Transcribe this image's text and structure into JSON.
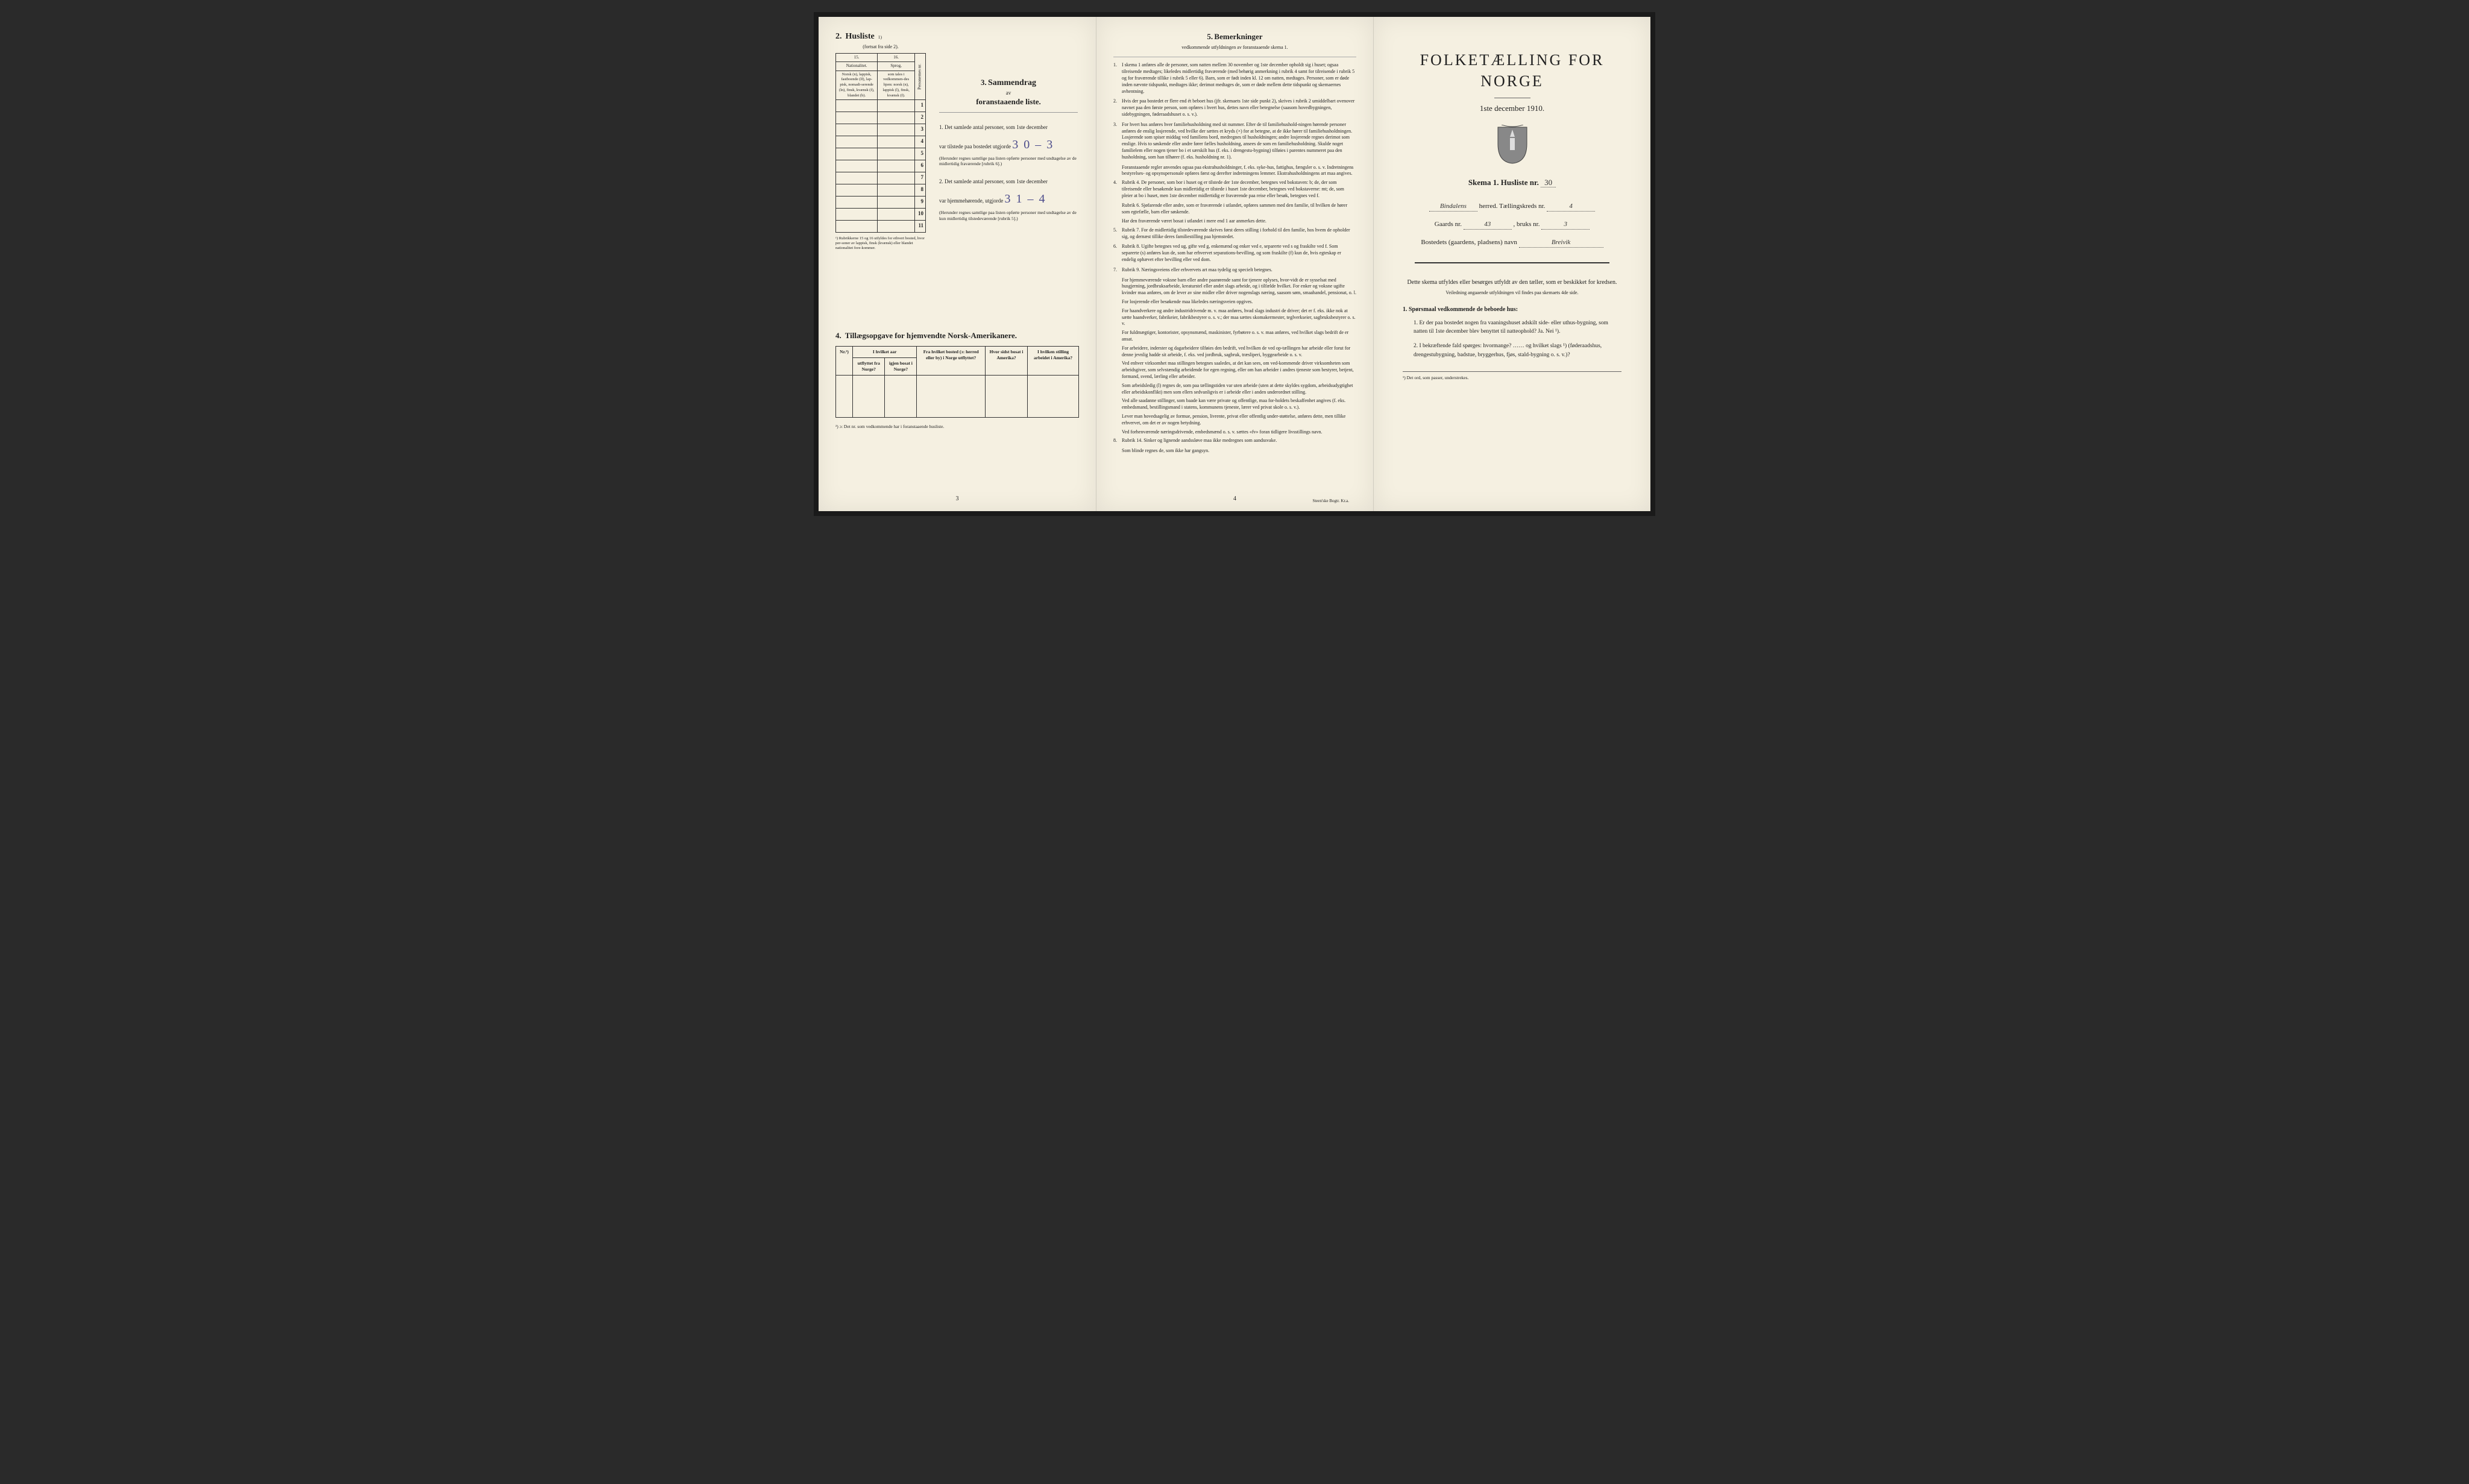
{
  "page1": {
    "section2": {
      "num": "2.",
      "title": "Husliste",
      "sup": "1)",
      "sub": "(fortsat fra side 2).",
      "col15": "15.",
      "col16": "16.",
      "h15a": "Nationalitet.",
      "h15b": "Norsk (n), lappisk, fastboende (lf), lap-pisk, nomadi-serende (ln), finsk, kvænsk (f), blandet (b).",
      "h16a": "Sprog,",
      "h16b": "som tales i vedkommen-des hjem: norsk (n), lappisk (l), finsk, kvænsk (f).",
      "h_pers": "Personernes nr.",
      "rows": [
        "1",
        "2",
        "3",
        "4",
        "5",
        "6",
        "7",
        "8",
        "9",
        "10",
        "11"
      ],
      "note": "¹) Rubrikkerne 15 og 16 utfyldes for ethvert bosted, hvor per-soner av lappisk, finsk (kvænsk) eller blandet nationalitet fore-kommer."
    },
    "section3": {
      "num": "3.",
      "word": "Sammendrag",
      "sub": "av",
      "main": "foranstaaende liste.",
      "item1_pre": "1. Det samlede antal personer, som 1ste december",
      "item1_mid": "var tilstede paa bostedet utgjorde",
      "item1_val": "3 0 – 3",
      "item1_paren": "(Herunder regnes samtlige paa listen opførte personer med undtagelse av de midlertidig fraværende [rubrik 6].)",
      "item2_pre": "2. Det samlede antal personer, som 1ste december",
      "item2_mid": "var hjemmehørende, utgjorde",
      "item2_val": "3 1 – 4",
      "item2_paren": "(Herunder regnes samtlige paa listen opførte personer med undtagelse av de kun midlertidig tilstedeværende [rubrik 5].)"
    },
    "section4": {
      "num": "4.",
      "title": "Tillægsopgave for hjemvendte Norsk-Amerikanere.",
      "h_nr": "Nr.²)",
      "h_aar": "I hvilket aar",
      "h_aar1": "utflyttet fra Norge?",
      "h_aar2": "igjen bosat i Norge?",
      "h_bosted": "Fra hvilket bosted (ɔ: herred eller by) i Norge utflyttet?",
      "h_sidst": "Hvor sidst bosat i Amerika?",
      "h_stilling": "I hvilken stilling arbeidet i Amerika?",
      "note": "²) ɔ: Det nr. som vedkommende har i foranstaaende husliste."
    },
    "pagenum": "3"
  },
  "page2": {
    "num": "5.",
    "title": "Bemerkninger",
    "sub": "vedkommende utfyldningen av foranstaaende skema 1.",
    "items": [
      {
        "n": "1.",
        "t": "I skema 1 anføres alle de personer, som natten mellem 30 november og 1ste december opholdt sig i huset; ogsaa tilreisende medtages; likeledes midlertidig fraværende (med behørig anmerkning i rubrik 4 samt for tilreisende i rubrik 5 og for fraværende tillike i rubrik 5 eller 6). Barn, som er født inden kl. 12 om natten, medtages. Personer, som er døde inden nævnte tidspunkt, medtages ikke; derimot medtages de, som er døde mellem dette tidspunkt og skemaernes avhentning."
      },
      {
        "n": "2.",
        "t": "Hvis der paa bostedet er flere end ét beboet hus (jfr. skemaets 1ste side punkt 2), skrives i rubrik 2 umiddelbart ovenover navnet paa den første person, som opføres i hvert hus, dettes navn eller betegnelse (saasom hovedbygningen, sidebygningen, føderaadshuset o. s. v.)."
      },
      {
        "n": "3.",
        "t": "For hvert hus anføres hver familiehusholdning med sit nummer. Efter de til familiehushold-ningen hørende personer anføres de enslig losjerende, ved hvilke der sættes et kryds (×) for at betegne, at de ikke hører til familiehusholdningen. Losjerende som spiser middag ved familiens bord, medregnes til husholdningen; andre losjerende regnes derimot som enslige. Hvis to søskende eller andre fører fælles husholdning, ansees de som en familiehusholdning. Skulde noget familielem eller nogen tjener bo i et særskilt hus (f. eks. i drengestu-bygning) tilføies i parentes nummeret paa den husholdning, som han tilhører (f. eks. husholdning nr. 1)."
      },
      {
        "n": "",
        "t": "Foranstaaende regler anvendes ogsaa paa ekstrahusholdninger, f. eks. syke-hus, fattighus, fængsler o. s. v. Indretningens bestyrelses- og opsynspersonale opføres først og derefter indretningens lemmer. Ekstrahusholdningens art maa angives."
      },
      {
        "n": "4.",
        "t": "Rubrik 4. De personer, som bor i huset og er tilstede der 1ste december, betegnes ved bokstaven: b; de, der som tilreisende eller besøkende kun midlertidig er tilstede i huset 1ste december, betegnes ved bokstaverne: mt; de, som pleier at bo i huset, men 1ste december midlertidig er fraværende paa reise eller besøk, betegnes ved f."
      },
      {
        "n": "",
        "t": "Rubrik 6. Sjøfarende eller andre, som er fraværende i utlandet, opføres sammen med den familie, til hvilken de hører som egtefælle, barn eller søskende."
      },
      {
        "n": "",
        "t": "Har den fraværende været bosat i utlandet i mere end 1 aar anmerkes dette."
      },
      {
        "n": "5.",
        "t": "Rubrik 7. For de midlertidig tilstedeværende skrives først deres stilling i forhold til den familie, hos hvem de opholder sig, og dernæst tillike deres familiestilling paa hjemstedet."
      },
      {
        "n": "6.",
        "t": "Rubrik 8. Ugifte betegnes ved ug, gifte ved g, enkemænd og enker ved e, separerte ved s og fraskilte ved f. Som separerte (s) anføres kun de, som har erhvervet separations-bevilling, og som fraskilte (f) kun de, hvis egteskap er endelig ophævet efter bevilling eller ved dom."
      },
      {
        "n": "7.",
        "t": "Rubrik 9. Næringsveiens eller erhvervets art maa tydelig og specielt betegnes."
      },
      {
        "n": "",
        "t": "For hjemmeværende voksne barn eller andre paarørende samt for tjenere oplyses, hvor-vidt de er sysselsat med husgjerning, jordbruksarbeide, kreaturstel eller andet slags arbeide, og i tilfælde hvilket. For enker og voksne ugifte kvinder maa anføres, om de lever av sine midler eller driver nogenslags næring, saasom søm, smaahandel, pensionat, o. l."
      },
      {
        "n": "",
        "t": "For losjerende eller besøkende maa likeledes næringsveien opgives."
      },
      {
        "n": "",
        "t": "For haandverkere og andre industridrivende m. v. maa anføres, hvad slags industri de driver; det er f. eks. ikke nok at sætte haandverker, fabrikeier, fabrikbestyrer o. s. v.; der maa sættes skomakermester, teglverkseier, sagbruksbestyrer o. s. v."
      },
      {
        "n": "",
        "t": "For fuldmægtiger, kontorister, opsynsmænd, maskinister, fyrbøtere o. s. v. maa anføres, ved hvilket slags bedrift de er ansat."
      },
      {
        "n": "",
        "t": "For arbeidere, inderster og dagarbeidere tilføies den bedrift, ved hvilken de ved op-tællingen har arbeide eller forut for denne jevnlig hadde sit arbeide, f. eks. ved jordbruk, sagbruk, træsliperi, byggearbeide o. s. v."
      },
      {
        "n": "",
        "t": "Ved enhver virksomhet maa stillingen betegnes saaledes, at det kan sees, om ved-kommende driver virksomheten som arbeidsgiver, som selvstændig arbeidende for egen regning, eller om han arbeider i andres tjeneste som bestyrer, betjent, formand, svend, lærling eller arbeider."
      },
      {
        "n": "",
        "t": "Som arbeidsledig (l) regnes de, som paa tællingstiden var uten arbeide (uten at dette skyldes sygdom, arbeidsudygtighet eller arbeidskonflikt) men som ellers sedvanligvis er i arbeide eller i anden underordnet stilling."
      },
      {
        "n": "",
        "t": "Ved alle saadanne stillinger, som baade kan være private og offentlige, maa for-holdets beskaffenhet angives (f. eks. embedsmand, bestillingsmand i statens, kommunens tjeneste, lærer ved privat skole o. s. v.)."
      },
      {
        "n": "",
        "t": "Lever man hovedsagelig av formue, pension, livrente, privat eller offentlig under-støttelse, anføres dette, men tillike erhvervet, om det er av nogen betydning."
      },
      {
        "n": "",
        "t": "Ved forhenværende næringsdrivende, embedsmænd o. s. v. sættes «fv» foran tidligere livsstillings navn."
      },
      {
        "n": "8.",
        "t": "Rubrik 14. Sinker og lignende aandssløve maa ikke medregnes som aandssvake."
      },
      {
        "n": "",
        "t": "Som blinde regnes de, som ikke har gangsyn."
      }
    ],
    "pagenum": "4",
    "imprint": "Steen'ske Bogtr. Kr.a."
  },
  "page3": {
    "title": "FOLKETÆLLING FOR NORGE",
    "date": "1ste december 1910.",
    "skema_label": "Skema 1.  Husliste nr.",
    "skema_val": "30",
    "line1_hand": "Bindalens",
    "line1_mid": "herred.  Tællingskreds nr.",
    "line1_val": "4",
    "line2_a": "Gaards nr.",
    "line2_av": "43",
    "line2_b": ", bruks nr.",
    "line2_bv": "3",
    "line3_a": "Bostedets (gaardens, pladsens) navn",
    "line3_v": "Breivik",
    "intro": "Dette skema utfyldes eller besørges utfyldt av den tæller, som er beskikket for kredsen.",
    "intro_small": "Veiledning angaaende utfyldningen vil findes paa skemaets 4de side.",
    "spm_title": "1. Spørsmaal vedkommende de beboede hus:",
    "q1": "1. Er der paa bostedet nogen fra vaaningshuset adskilt side- eller uthus-bygning, som natten til 1ste december blev benyttet til natteophold?  Ja.  Nei ¹).",
    "q2": "2. I bekræftende fald spørges: hvormange? …… og hvilket slags ¹) (føderaadshus, drengestubygning, badstue, bryggerhus, fjøs, stald-bygning o. s. v.)?",
    "foot": "¹) Det ord, som passer, understrekes."
  }
}
